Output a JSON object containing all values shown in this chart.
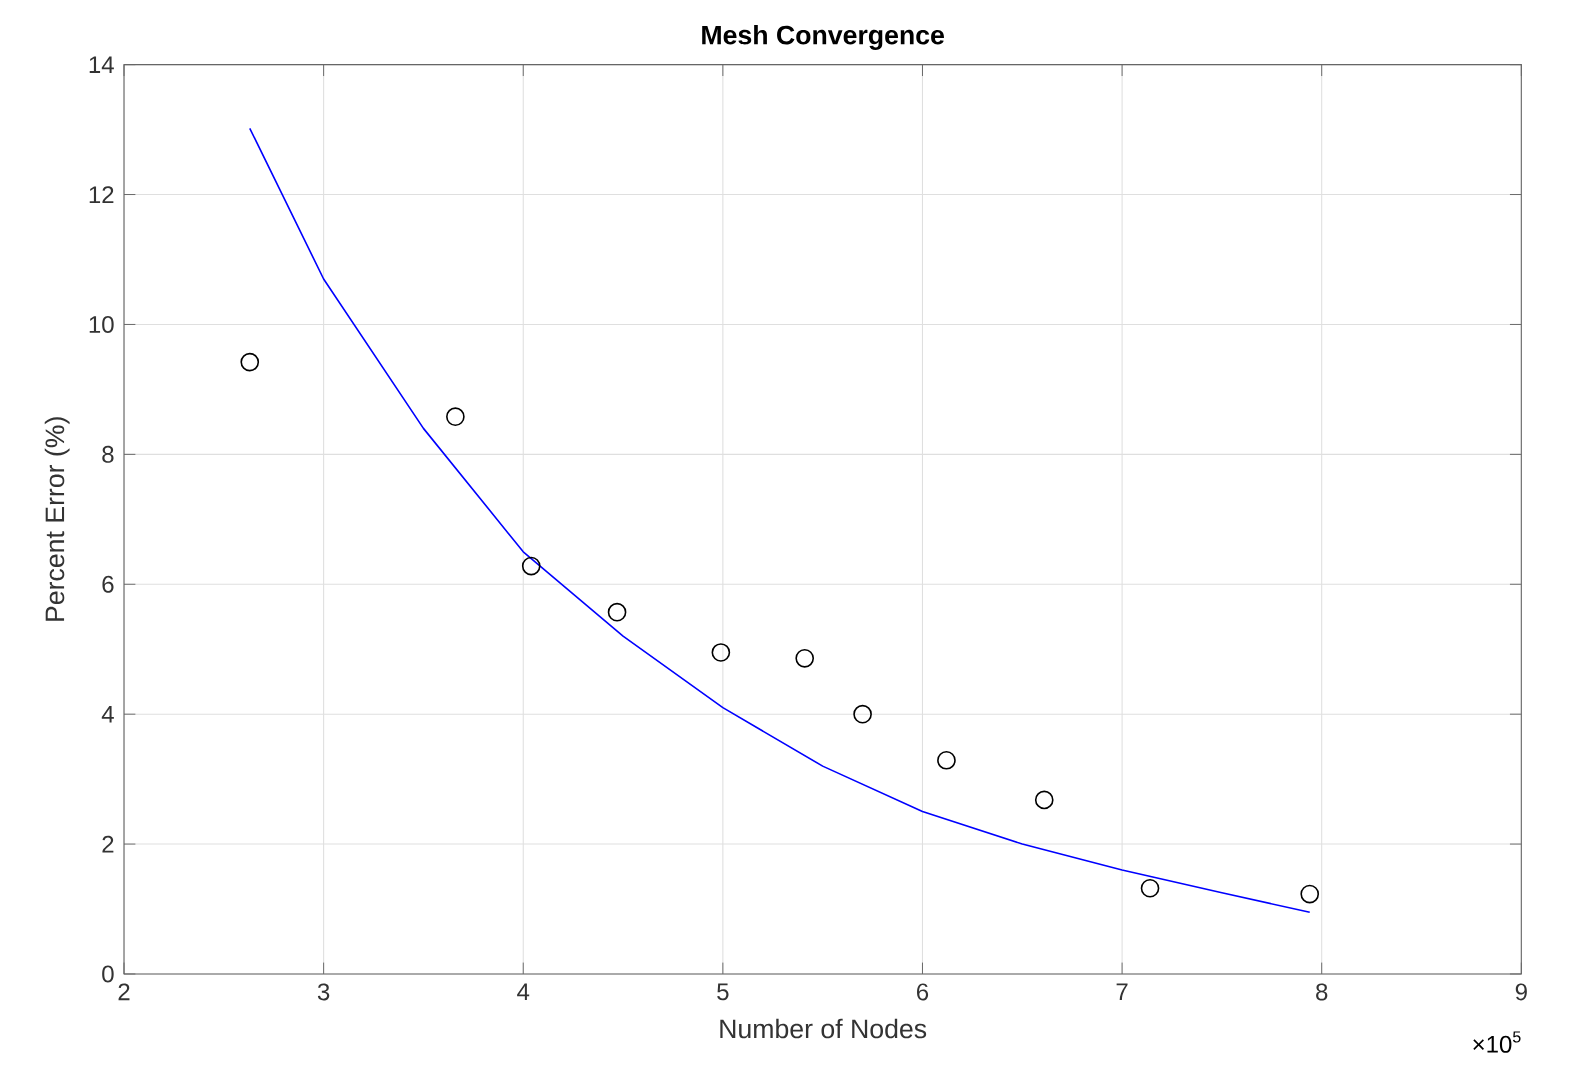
{
  "chart_data": {
    "type": "scatter",
    "title": "Mesh Convergence",
    "xlabel": "Number of Nodes",
    "ylabel": "Percent Error (%)",
    "annotations": [
      "×10$^{5}$"
    ],
    "xlim": [
      2,
      9
    ],
    "ylim": [
      0,
      14
    ],
    "xticks": [
      2,
      3,
      4,
      5,
      6,
      7,
      8,
      9
    ],
    "yticks": [
      0,
      2,
      4,
      6,
      8,
      10,
      12,
      14
    ],
    "grid": true,
    "series": [
      {
        "marker": "circle",
        "color": "#000000",
        "x": [
          2.63,
          3.66,
          4.04,
          4.47,
          4.99,
          5.41,
          5.7,
          6.12,
          6.61,
          7.14,
          7.94
        ],
        "values": [
          9.42,
          8.58,
          6.28,
          5.57,
          4.95,
          4.86,
          4.0,
          3.29,
          2.68,
          1.32,
          1.23
        ]
      },
      {
        "type": "line",
        "marker": "none",
        "line_style": "solid",
        "color": "#0000ff",
        "x": [
          2.63,
          3.0,
          3.5,
          4.0,
          4.5,
          5.0,
          5.5,
          6.0,
          6.5,
          7.0,
          7.5,
          7.94
        ],
        "values": [
          13.02,
          10.7,
          8.4,
          6.5,
          5.2,
          4.1,
          3.2,
          2.5,
          2.0,
          1.6,
          1.25,
          0.95
        ]
      }
    ]
  }
}
